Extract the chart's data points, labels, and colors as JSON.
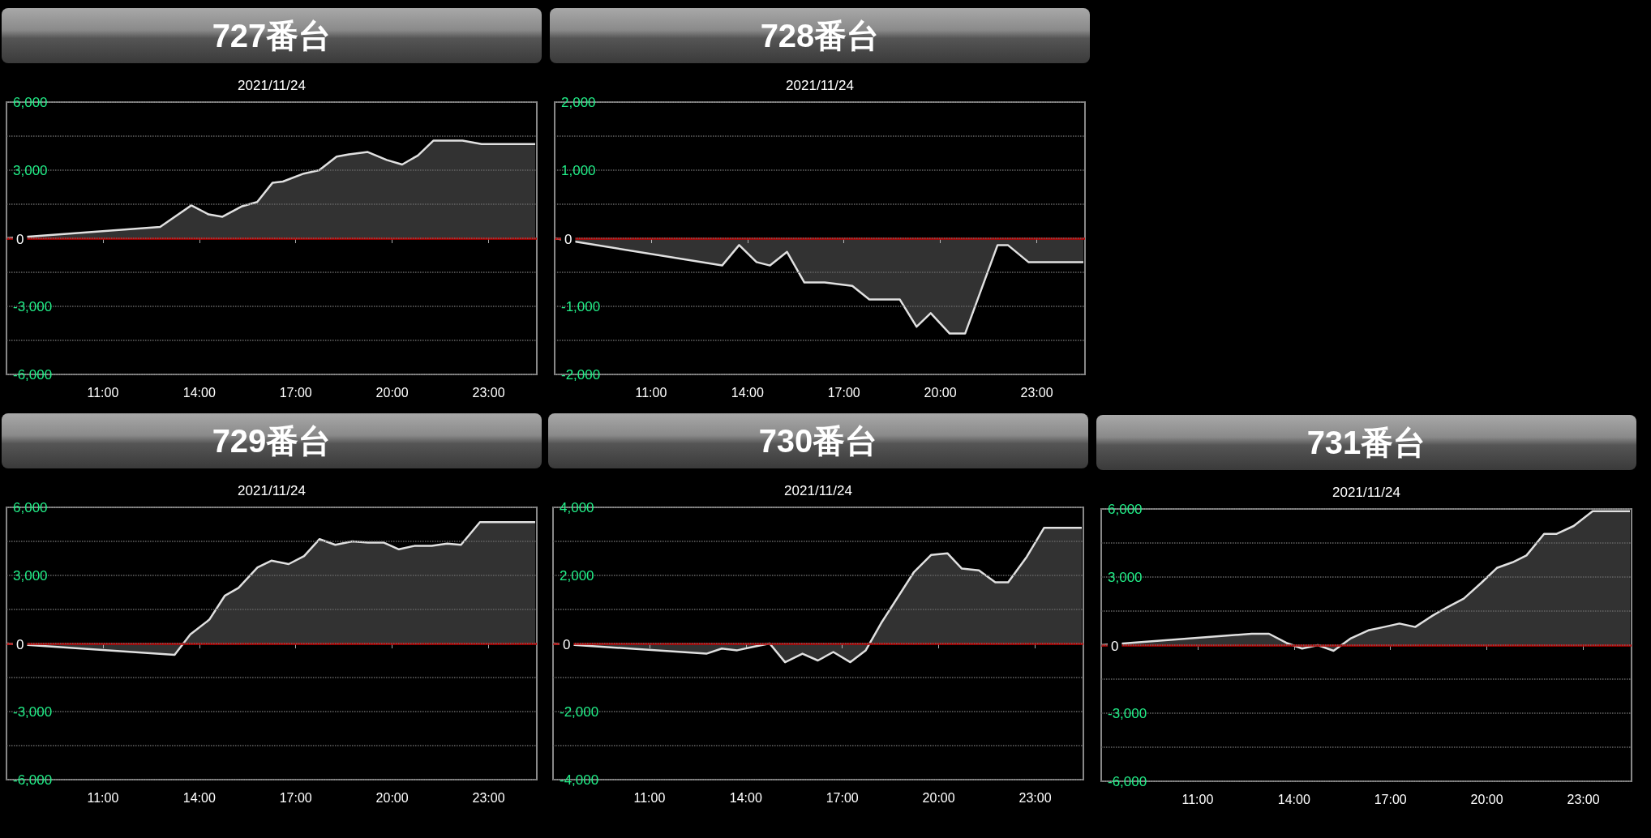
{
  "chart_data": [
    {
      "type": "area",
      "title": "727番台",
      "subtitle": "2021/11/24",
      "color": "#e0e0e0",
      "grid": "y",
      "x": [
        8.0,
        12.78,
        13.75,
        14.29,
        14.72,
        15.31,
        15.8,
        16.28,
        16.6,
        17.25,
        17.73,
        18.27,
        18.65,
        19.24,
        19.83,
        20.31,
        20.8,
        21.28,
        22.19,
        22.78,
        24.45
      ],
      "values": [
        0,
        500,
        1450,
        1050,
        950,
        1400,
        1600,
        2450,
        2500,
        2850,
        3000,
        3600,
        3700,
        3800,
        3450,
        3250,
        3650,
        4300,
        4300,
        4150,
        4150
      ],
      "xlim": [
        8,
        24.5
      ],
      "xticks": [
        {
          "value": 11,
          "label": "11:00"
        },
        {
          "value": 14,
          "label": "14:00"
        },
        {
          "value": 17,
          "label": "17:00"
        },
        {
          "value": 20,
          "label": "20:00"
        },
        {
          "value": 23,
          "label": "23:00"
        }
      ],
      "ylim": [
        -6000,
        6000
      ],
      "yticks": [
        {
          "value": -6000,
          "label": "-6,000"
        },
        {
          "value": -4500,
          "label": null
        },
        {
          "value": -3000,
          "label": "-3,000"
        },
        {
          "value": -1500,
          "label": null
        },
        {
          "value": 0,
          "label": "0"
        },
        {
          "value": 1500,
          "label": null
        },
        {
          "value": 3000,
          "label": "3,000"
        },
        {
          "value": 4500,
          "label": null
        },
        {
          "value": 6000,
          "label": "6,000"
        }
      ],
      "ref_lines": [
        {
          "axis": "y",
          "value": 0,
          "color": "#c00000"
        }
      ]
    },
    {
      "type": "area",
      "title": "728番台",
      "subtitle": "2021/11/24",
      "color": "#e0e0e0",
      "grid": "y",
      "x": [
        8.0,
        13.21,
        13.74,
        14.28,
        14.7,
        15.23,
        15.77,
        16.4,
        17.26,
        17.79,
        18.21,
        18.74,
        19.26,
        19.7,
        20.29,
        20.77,
        21.78,
        22.1,
        22.74,
        24.45
      ],
      "values": [
        0,
        -400,
        -100,
        -350,
        -400,
        -200,
        -650,
        -650,
        -700,
        -900,
        -900,
        -900,
        -1300,
        -1100,
        -1400,
        -1400,
        -100,
        -100,
        -350,
        -350
      ],
      "xlim": [
        8,
        24.5
      ],
      "xticks": [
        {
          "value": 11,
          "label": "11:00"
        },
        {
          "value": 14,
          "label": "14:00"
        },
        {
          "value": 17,
          "label": "17:00"
        },
        {
          "value": 20,
          "label": "20:00"
        },
        {
          "value": 23,
          "label": "23:00"
        }
      ],
      "ylim": [
        -2000,
        2000
      ],
      "yticks": [
        {
          "value": -2000,
          "label": "-2,000"
        },
        {
          "value": -1500,
          "label": null
        },
        {
          "value": -1000,
          "label": "-1,000"
        },
        {
          "value": -500,
          "label": null
        },
        {
          "value": 0,
          "label": "0"
        },
        {
          "value": 500,
          "label": null
        },
        {
          "value": 1000,
          "label": "1,000"
        },
        {
          "value": 1500,
          "label": null
        },
        {
          "value": 2000,
          "label": "2,000"
        }
      ],
      "ref_lines": [
        {
          "axis": "y",
          "value": 0,
          "color": "#c00000"
        }
      ]
    },
    {
      "type": "area",
      "title": "729番台",
      "subtitle": "2021/11/24",
      "color": "#e0e0e0",
      "grid": "y",
      "x": [
        8.0,
        13.23,
        13.72,
        14.31,
        14.79,
        15.22,
        15.81,
        16.24,
        16.78,
        17.26,
        17.74,
        18.23,
        18.76,
        19.25,
        19.73,
        20.21,
        20.69,
        21.23,
        21.71,
        22.14,
        22.73,
        24.45
      ],
      "values": [
        0,
        -500,
        400,
        1050,
        2100,
        2450,
        3350,
        3650,
        3500,
        3850,
        4600,
        4350,
        4500,
        4450,
        4450,
        4150,
        4300,
        4300,
        4400,
        4350,
        5350,
        5350
      ],
      "xlim": [
        8,
        24.5
      ],
      "xticks": [
        {
          "value": 11,
          "label": "11:00"
        },
        {
          "value": 14,
          "label": "14:00"
        },
        {
          "value": 17,
          "label": "17:00"
        },
        {
          "value": 20,
          "label": "20:00"
        },
        {
          "value": 23,
          "label": "23:00"
        }
      ],
      "ylim": [
        -6000,
        6000
      ],
      "yticks": [
        {
          "value": -6000,
          "label": "-6,000"
        },
        {
          "value": -4500,
          "label": null
        },
        {
          "value": -3000,
          "label": "-3,000"
        },
        {
          "value": -1500,
          "label": null
        },
        0,
        {
          "value": 1500,
          "label": null
        },
        {
          "value": 3000,
          "label": "3,000"
        },
        {
          "value": 4500,
          "label": null
        },
        {
          "value": 6000,
          "label": "6,000"
        }
      ],
      "ref_lines": [
        {
          "axis": "y",
          "value": 0,
          "color": "#c00000"
        }
      ]
    },
    {
      "type": "area",
      "title": "730番台",
      "subtitle": "2021/11/24",
      "color": "#e0e0e0",
      "grid": "y",
      "x": [
        8.0,
        12.77,
        13.25,
        13.73,
        14.21,
        14.74,
        15.22,
        15.76,
        16.24,
        16.72,
        17.25,
        17.73,
        18.21,
        19.23,
        19.76,
        20.27,
        20.72,
        21.25,
        21.76,
        22.16,
        22.74,
        23.28,
        24.45
      ],
      "values": [
        0,
        -300,
        -150,
        -200,
        -100,
        0,
        -550,
        -300,
        -500,
        -250,
        -550,
        -200,
        600,
        2100,
        2600,
        2650,
        2200,
        2150,
        1800,
        1800,
        2550,
        3400,
        3400
      ],
      "xlim": [
        8,
        24.5
      ],
      "xticks": [
        {
          "value": 11,
          "label": "11:00"
        },
        {
          "value": 14,
          "label": "14:00"
        },
        {
          "value": 17,
          "label": "17:00"
        },
        {
          "value": 20,
          "label": "20:00"
        },
        {
          "value": 23,
          "label": "23:00"
        }
      ],
      "ylim": [
        -4000,
        4000
      ],
      "yticks": [
        {
          "value": -4000,
          "label": "-4,000"
        },
        {
          "value": -3000,
          "label": null
        },
        {
          "value": -2000,
          "label": "-2,000"
        },
        {
          "value": -1000,
          "label": null
        },
        {
          "value": 0,
          "label": "0"
        },
        {
          "value": 1000,
          "label": null
        },
        {
          "value": 2000,
          "label": "2,000"
        },
        {
          "value": 3000,
          "label": null
        },
        {
          "value": 4000,
          "label": "4,000"
        }
      ],
      "ref_lines": [
        {
          "axis": "y",
          "value": 0,
          "color": "#c00000"
        }
      ]
    },
    {
      "type": "area",
      "title": "731番台",
      "subtitle": "2021/11/24",
      "color": "#e0e0e0",
      "grid": "y",
      "x": [
        8.0,
        12.68,
        13.22,
        13.76,
        14.25,
        14.74,
        15.23,
        15.77,
        16.31,
        16.8,
        17.28,
        17.77,
        18.31,
        18.74,
        19.28,
        19.83,
        20.31,
        20.8,
        21.23,
        21.78,
        22.16,
        22.7,
        23.29,
        24.45
      ],
      "values": [
        0,
        500,
        500,
        100,
        -150,
        0,
        -250,
        300,
        650,
        800,
        950,
        800,
        1300,
        1650,
        2050,
        2750,
        3400,
        3650,
        3950,
        4900,
        4900,
        5250,
        5900,
        5900
      ],
      "xlim": [
        8,
        24.5
      ],
      "xticks": [
        {
          "value": 11,
          "label": "11:00"
        },
        {
          "value": 14,
          "label": "14:00"
        },
        {
          "value": 17,
          "label": "17:00"
        },
        {
          "value": 20,
          "label": "20:00"
        },
        {
          "value": 23,
          "label": "23:00"
        }
      ],
      "ylim": [
        -6000,
        6000
      ],
      "yticks": [
        {
          "value": -6000,
          "label": "-6,000"
        },
        {
          "value": -4500,
          "label": null
        },
        {
          "value": -3000,
          "label": "-3,000"
        },
        {
          "value": -1500,
          "label": null
        },
        0,
        {
          "value": 1500,
          "label": null
        },
        {
          "value": 3000,
          "label": "3,000"
        },
        {
          "value": 4500,
          "label": null
        },
        {
          "value": 6000,
          "label": "6,000"
        }
      ],
      "ref_lines": [
        {
          "axis": "y",
          "value": 0,
          "color": "#c00000"
        }
      ]
    }
  ]
}
